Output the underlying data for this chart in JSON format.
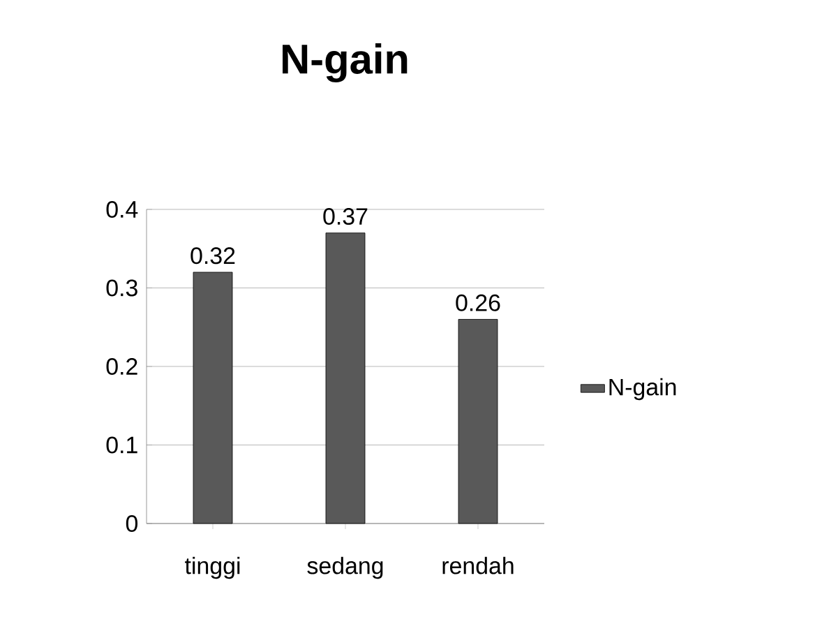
{
  "chart_data": {
    "type": "bar",
    "title": "N-gain",
    "categories": [
      "tinggi",
      "sedang",
      "rendah"
    ],
    "series": [
      {
        "name": "N-gain",
        "color": "#595959",
        "values": [
          0.32,
          0.37,
          0.26
        ]
      }
    ],
    "ylim": [
      0,
      0.4
    ],
    "yticks": [
      0,
      0.1,
      0.2,
      0.3,
      0.4
    ],
    "grid": "y",
    "legend": "right",
    "data_labels": true
  }
}
